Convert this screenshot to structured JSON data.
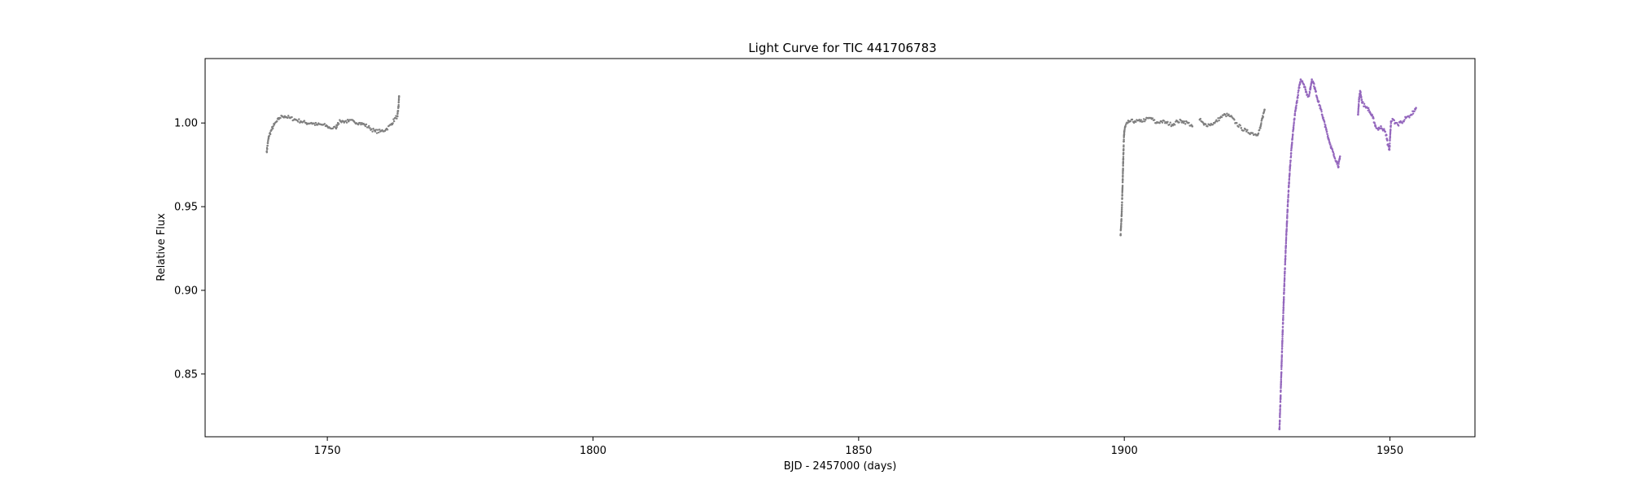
{
  "chart_data": {
    "type": "scatter",
    "title": "Light Curve for TIC 441706783",
    "xlabel": "BJD - 2457000 (days)",
    "ylabel": "Relative Flux",
    "xlim": [
      1727,
      1966
    ],
    "ylim": [
      0.8125,
      1.0385
    ],
    "xticks": [
      1750,
      1800,
      1850,
      1900,
      1950
    ],
    "xtick_labels": [
      "1750",
      "1800",
      "1850",
      "1900",
      "1950"
    ],
    "yticks": [
      0.85,
      0.9,
      0.95,
      1.0
    ],
    "ytick_labels": [
      "0.85",
      "0.90",
      "0.95",
      "1.00"
    ],
    "grid": false,
    "legend": "none",
    "series": [
      {
        "color": "#7f7f7f",
        "points": [
          [
            1738.6,
            0.983
          ],
          [
            1738.8,
            0.988
          ],
          [
            1739.0,
            0.992
          ],
          [
            1739.5,
            0.996
          ],
          [
            1740.0,
            0.999
          ],
          [
            1740.5,
            1.001
          ],
          [
            1741.0,
            1.003
          ],
          [
            1741.5,
            1.004
          ],
          [
            1742.0,
            1.004
          ],
          [
            1743.0,
            1.003
          ],
          [
            1744.0,
            1.002
          ],
          [
            1745.0,
            1.001
          ],
          [
            1746.0,
            1.0
          ],
          [
            1747.0,
            1.0
          ],
          [
            1748.0,
            0.999
          ],
          [
            1749.0,
            0.999
          ],
          [
            1750.0,
            0.998
          ],
          [
            1750.5,
            0.997
          ],
          [
            1751.6,
            0.997
          ],
          [
            1752.0,
            1.0
          ],
          [
            1752.5,
            1.001
          ],
          [
            1753.0,
            1.001
          ],
          [
            1754.0,
            1.001
          ],
          [
            1755.0,
            1.001
          ],
          [
            1756.0,
            1.0
          ],
          [
            1757.0,
            0.999
          ],
          [
            1758.0,
            0.997
          ],
          [
            1759.0,
            0.995
          ],
          [
            1760.0,
            0.995
          ],
          [
            1761.0,
            0.996
          ],
          [
            1762.0,
            0.999
          ],
          [
            1762.8,
            1.003
          ],
          [
            1763.2,
            1.004
          ],
          [
            1763.4,
            1.01
          ],
          [
            1763.5,
            1.016
          ],
          [
            1899.3,
            0.933
          ],
          [
            1899.5,
            0.945
          ],
          [
            1899.6,
            0.955
          ],
          [
            1899.7,
            0.966
          ],
          [
            1899.8,
            0.978
          ],
          [
            1899.9,
            0.989
          ],
          [
            1900.0,
            0.995
          ],
          [
            1900.2,
            0.998
          ],
          [
            1900.6,
            1.0
          ],
          [
            1901.0,
            1.001
          ],
          [
            1902.0,
            1.001
          ],
          [
            1903.0,
            1.001
          ],
          [
            1904.0,
            1.002
          ],
          [
            1905.0,
            1.003
          ],
          [
            1906.0,
            1.0
          ],
          [
            1907.0,
            1.001
          ],
          [
            1908.0,
            1.0
          ],
          [
            1909.0,
            0.999
          ],
          [
            1910.0,
            1.001
          ],
          [
            1911.0,
            1.001
          ],
          [
            1912.0,
            1.0
          ],
          [
            1912.8,
            0.998
          ],
          [
            1914.2,
            1.002
          ],
          [
            1915.0,
            0.999
          ],
          [
            1916.0,
            0.999
          ],
          [
            1917.0,
            1.0
          ],
          [
            1918.0,
            1.003
          ],
          [
            1919.0,
            1.005
          ],
          [
            1920.0,
            1.004
          ],
          [
            1921.0,
            1.0
          ],
          [
            1922.0,
            0.997
          ],
          [
            1923.0,
            0.995
          ],
          [
            1924.0,
            0.994
          ],
          [
            1925.0,
            0.993
          ],
          [
            1925.6,
            0.997
          ],
          [
            1926.0,
            1.003
          ],
          [
            1926.4,
            1.008
          ]
        ]
      },
      {
        "color": "#9467bd",
        "points": [
          [
            1929.2,
            0.817
          ],
          [
            1929.4,
            0.835
          ],
          [
            1929.6,
            0.855
          ],
          [
            1929.8,
            0.875
          ],
          [
            1930.0,
            0.893
          ],
          [
            1930.2,
            0.91
          ],
          [
            1930.4,
            0.926
          ],
          [
            1930.6,
            0.94
          ],
          [
            1930.8,
            0.953
          ],
          [
            1931.0,
            0.964
          ],
          [
            1931.2,
            0.974
          ],
          [
            1931.4,
            0.982
          ],
          [
            1931.6,
            0.99
          ],
          [
            1931.8,
            0.996
          ],
          [
            1932.0,
            1.002
          ],
          [
            1932.3,
            1.009
          ],
          [
            1932.6,
            1.015
          ],
          [
            1932.9,
            1.021
          ],
          [
            1933.2,
            1.026
          ],
          [
            1933.5,
            1.025
          ],
          [
            1933.8,
            1.023
          ],
          [
            1934.1,
            1.02
          ],
          [
            1934.4,
            1.017
          ],
          [
            1934.7,
            1.016
          ],
          [
            1935.0,
            1.02
          ],
          [
            1935.3,
            1.026
          ],
          [
            1935.6,
            1.024
          ],
          [
            1936.0,
            1.019
          ],
          [
            1936.5,
            1.013
          ],
          [
            1937.0,
            1.008
          ],
          [
            1937.5,
            1.002
          ],
          [
            1938.0,
            0.996
          ],
          [
            1938.5,
            0.99
          ],
          [
            1939.0,
            0.985
          ],
          [
            1939.5,
            0.98
          ],
          [
            1940.0,
            0.977
          ],
          [
            1940.3,
            0.974
          ],
          [
            1940.6,
            0.98
          ],
          [
            1944.0,
            1.005
          ],
          [
            1944.2,
            1.015
          ],
          [
            1944.4,
            1.019
          ],
          [
            1944.8,
            1.012
          ],
          [
            1945.3,
            1.01
          ],
          [
            1945.8,
            1.009
          ],
          [
            1946.3,
            1.006
          ],
          [
            1946.8,
            1.003
          ],
          [
            1947.3,
            0.998
          ],
          [
            1947.8,
            0.996
          ],
          [
            1948.3,
            0.998
          ],
          [
            1948.8,
            0.996
          ],
          [
            1949.3,
            0.993
          ],
          [
            1949.6,
            0.987
          ],
          [
            1949.9,
            0.984
          ],
          [
            1950.2,
            1.001
          ],
          [
            1950.6,
            1.002
          ],
          [
            1951.0,
            1.0
          ],
          [
            1951.5,
            0.999
          ],
          [
            1952.0,
            1.001
          ],
          [
            1952.5,
            1.001
          ],
          [
            1953.0,
            1.003
          ],
          [
            1953.5,
            1.004
          ],
          [
            1954.0,
            1.005
          ],
          [
            1954.5,
            1.007
          ],
          [
            1954.9,
            1.009
          ]
        ]
      }
    ]
  }
}
